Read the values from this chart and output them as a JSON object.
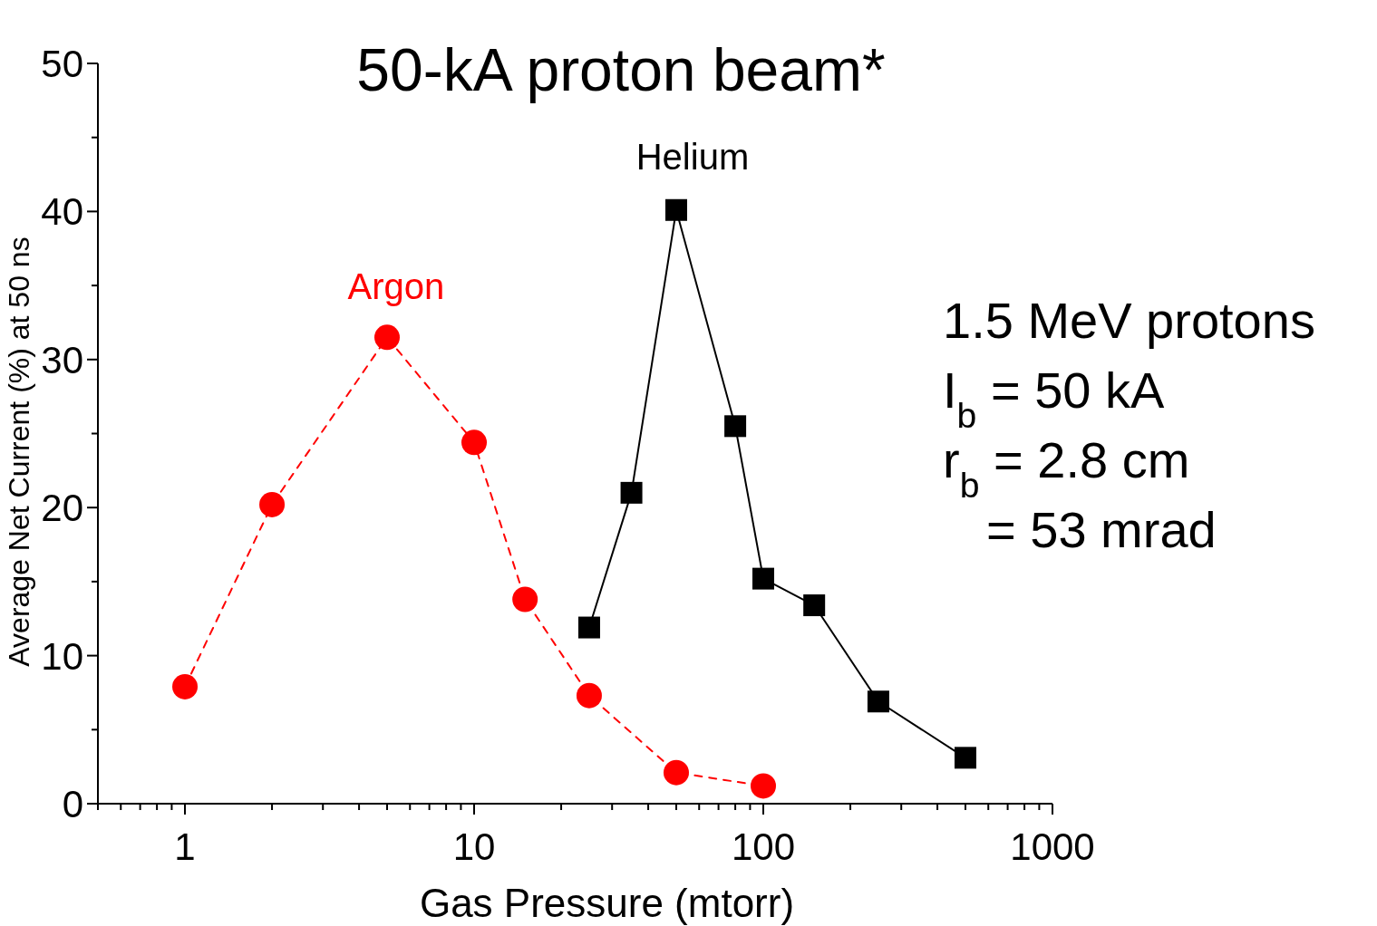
{
  "chart_data": {
    "type": "line",
    "title": "50-kA proton beam*",
    "xlabel": "Gas Pressure (mtorr)",
    "ylabel": "Average Net Current (%) at 50 ns",
    "log": "x",
    "xlim": [
      0.5,
      1000
    ],
    "ylim": [
      0,
      50
    ],
    "xticks": [
      {
        "value": 0.5,
        "label": null
      },
      {
        "value": 0.6,
        "label": null
      },
      {
        "value": 0.7,
        "label": null
      },
      {
        "value": 0.8,
        "label": null
      },
      {
        "value": 0.9,
        "label": null
      },
      1,
      {
        "value": 2,
        "label": null
      },
      {
        "value": 3,
        "label": null
      },
      {
        "value": 4,
        "label": null
      },
      {
        "value": 5,
        "label": null
      },
      {
        "value": 6,
        "label": null
      },
      {
        "value": 7,
        "label": null
      },
      {
        "value": 8,
        "label": null
      },
      {
        "value": 9,
        "label": null
      },
      10,
      {
        "value": 20,
        "label": null
      },
      {
        "value": 30,
        "label": null
      },
      {
        "value": 40,
        "label": null
      },
      {
        "value": 50,
        "label": null
      },
      {
        "value": 60,
        "label": null
      },
      {
        "value": 70,
        "label": null
      },
      {
        "value": 80,
        "label": null
      },
      {
        "value": 90,
        "label": null
      },
      100,
      {
        "value": 200,
        "label": null
      },
      {
        "value": 300,
        "label": null
      },
      {
        "value": 400,
        "label": null
      },
      {
        "value": 500,
        "label": null
      },
      {
        "value": 600,
        "label": null
      },
      {
        "value": 700,
        "label": null
      },
      {
        "value": 800,
        "label": null
      },
      {
        "value": 900,
        "label": null
      },
      1000
    ],
    "yticks": [
      0,
      {
        "value": 5,
        "label": null
      },
      10,
      {
        "value": 15,
        "label": null
      },
      20,
      {
        "value": 25,
        "label": null
      },
      30,
      {
        "value": 35,
        "label": null
      },
      40,
      {
        "value": 45,
        "label": null
      },
      50
    ],
    "series": [
      {
        "name": "Argon",
        "color": "#ff0000",
        "marker": "circle",
        "line_style": "dashed",
        "x": [
          1,
          2,
          5,
          10,
          15,
          25,
          50,
          100
        ],
        "values": [
          7.9,
          20.2,
          31.5,
          24.4,
          13.8,
          7.3,
          2.1,
          1.2
        ]
      },
      {
        "name": "Helium",
        "color": "#000000",
        "marker": "square",
        "line_style": "solid",
        "x": [
          25,
          35,
          50,
          80,
          100,
          150,
          250,
          500
        ],
        "values": [
          11.9,
          21.0,
          40.1,
          25.5,
          15.2,
          13.4,
          6.9,
          3.1
        ]
      }
    ],
    "annotations": [
      "1.5 MeV protons",
      "I$_{b}$ = 50 kA",
      "r$_{b}$ = 2.8 cm",
      "= 53 mrad"
    ]
  }
}
